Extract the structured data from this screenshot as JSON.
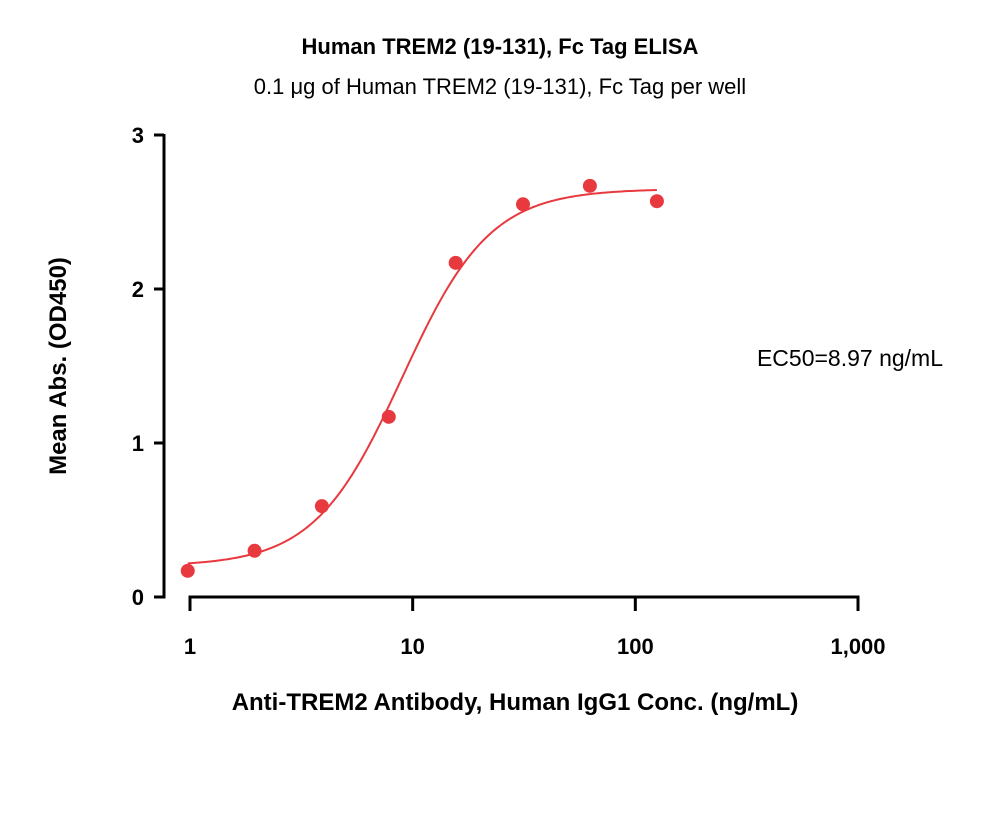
{
  "chart_data": {
    "type": "scatter",
    "title": "Human TREM2 (19-131), Fc Tag ELISA",
    "subtitle": "0.1 μg of Human TREM2 (19-131), Fc Tag per well",
    "xlabel": "Anti-TREM2 Antibody, Human IgG1 Conc. (ng/mL)",
    "ylabel": "Mean Abs. (OD450)",
    "x_scale": "log",
    "xlim": [
      1,
      1000
    ],
    "ylim": [
      0,
      3
    ],
    "x_ticks": [
      1,
      10,
      100,
      1000
    ],
    "x_tick_labels": [
      "1",
      "10",
      "100",
      "1,000"
    ],
    "y_ticks": [
      0,
      1,
      2,
      3
    ],
    "y_tick_labels": [
      "0",
      "1",
      "2",
      "3"
    ],
    "grid": false,
    "color": "#e8393e",
    "points": [
      {
        "x": 0.977,
        "y": 0.17
      },
      {
        "x": 1.95,
        "y": 0.3
      },
      {
        "x": 3.91,
        "y": 0.59
      },
      {
        "x": 7.81,
        "y": 1.17
      },
      {
        "x": 15.6,
        "y": 2.17
      },
      {
        "x": 31.3,
        "y": 2.55
      },
      {
        "x": 62.5,
        "y": 2.67
      },
      {
        "x": 125,
        "y": 2.57
      }
    ],
    "fit_curve": {
      "model": "4PL",
      "bottom": 0.2,
      "top": 2.65,
      "ec50": 8.97,
      "hill": 2.2,
      "x_range": [
        0.977,
        125
      ]
    },
    "annotation": "EC50=8.97 ng/mL"
  }
}
